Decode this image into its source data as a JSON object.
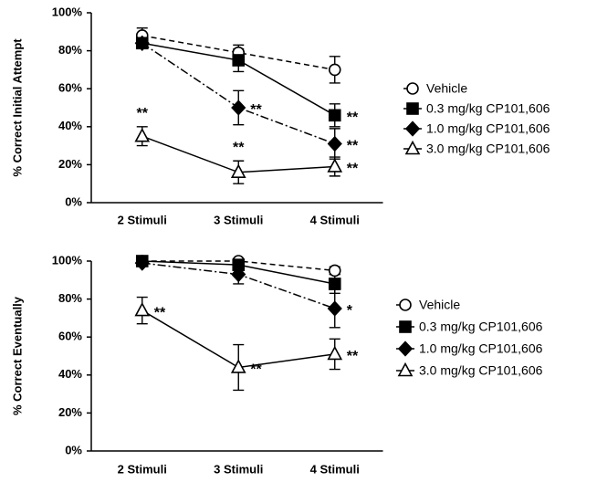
{
  "chart_data": [
    {
      "type": "line",
      "y_label": "% Correct Initial Attempt",
      "categories": [
        "2 Stimuli",
        "3 Stimuli",
        "4 Stimuli"
      ],
      "ylim": [
        0,
        100
      ],
      "yticks": [
        {
          "value": 0,
          "label": "0%"
        },
        {
          "value": 20,
          "label": "20%"
        },
        {
          "value": 40,
          "label": "40%"
        },
        {
          "value": 60,
          "label": "60%"
        },
        {
          "value": 80,
          "label": "80%"
        },
        {
          "value": 100,
          "label": "100%"
        }
      ],
      "series": [
        {
          "name": "Vehicle",
          "color": "#000000",
          "marker": "circle-open",
          "dash": "dashed",
          "values": [
            88,
            79,
            70
          ],
          "errors": [
            4,
            4,
            7
          ],
          "significance": [
            null,
            null,
            null
          ]
        },
        {
          "name": "0.3 mg/kg CP101,606",
          "color": "#000000",
          "marker": "square",
          "dash": "solid",
          "values": [
            84,
            75,
            46
          ],
          "errors": [
            1,
            6,
            6
          ],
          "significance": [
            null,
            null,
            "**"
          ]
        },
        {
          "name": "1.0 mg/kg CP101,606",
          "color": "#000000",
          "marker": "diamond",
          "dash": "dashdot",
          "values": [
            84,
            50,
            31
          ],
          "errors": [
            1,
            9,
            8
          ],
          "significance": [
            null,
            "**",
            "**"
          ]
        },
        {
          "name": "3.0 mg/kg CP101,606",
          "color": "#000000",
          "marker": "triangle-open",
          "dash": "solid",
          "values": [
            35,
            16,
            19
          ],
          "errors": [
            5,
            6,
            5
          ],
          "significance": [
            "**",
            "**",
            "**"
          ]
        }
      ]
    },
    {
      "type": "line",
      "y_label": "% Correct Eventually",
      "categories": [
        "2 Stimuli",
        "3 Stimuli",
        "4 Stimuli"
      ],
      "ylim": [
        0,
        100
      ],
      "yticks": [
        {
          "value": 0,
          "label": "0%"
        },
        {
          "value": 20,
          "label": "20%"
        },
        {
          "value": 40,
          "label": "40%"
        },
        {
          "value": 60,
          "label": "60%"
        },
        {
          "value": 80,
          "label": "80%"
        },
        {
          "value": 100,
          "label": "100%"
        }
      ],
      "series": [
        {
          "name": "Vehicle",
          "color": "#000000",
          "marker": "circle-open",
          "dash": "dashed",
          "values": [
            100,
            100,
            95
          ],
          "errors": [
            1,
            1,
            2
          ],
          "significance": [
            null,
            null,
            null
          ]
        },
        {
          "name": "0.3 mg/kg CP101,606",
          "color": "#000000",
          "marker": "square",
          "dash": "solid",
          "values": [
            100,
            98,
            88
          ],
          "errors": [
            1,
            2,
            5
          ],
          "significance": [
            null,
            null,
            null
          ]
        },
        {
          "name": "1.0 mg/kg CP101,606",
          "color": "#000000",
          "marker": "diamond",
          "dash": "dashdot",
          "values": [
            99,
            93,
            75
          ],
          "errors": [
            1,
            5,
            10
          ],
          "significance": [
            null,
            null,
            "*"
          ]
        },
        {
          "name": "3.0 mg/kg CP101,606",
          "color": "#000000",
          "marker": "triangle-open",
          "dash": "solid",
          "values": [
            74,
            44,
            51
          ],
          "errors": [
            7,
            12,
            8
          ],
          "significance": [
            "**",
            "**",
            "**"
          ]
        }
      ]
    }
  ]
}
